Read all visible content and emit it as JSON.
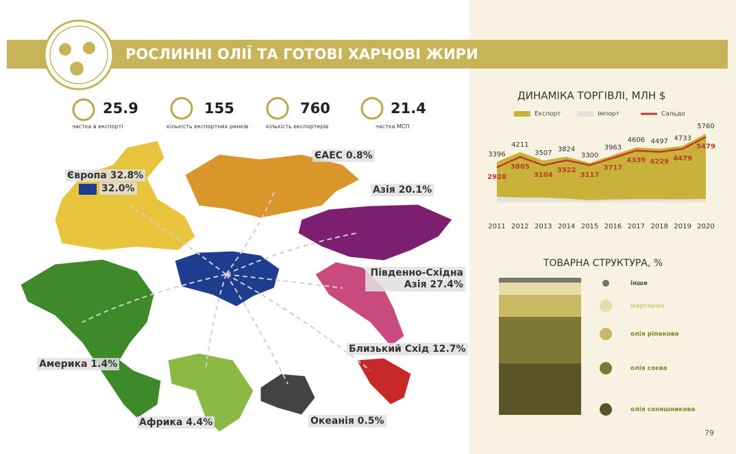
{
  "header": {
    "title": "РОСЛИННІ ОЛІЇ ТА ГОТОВІ ХАРЧОВІ ЖИРИ"
  },
  "stats": [
    {
      "value": 25.9,
      "label": "частка в експорті"
    },
    {
      "value": 155,
      "label": "кількість експортних ринків"
    },
    {
      "value": 760,
      "label": "кількість експортерів"
    },
    {
      "value": 21.4,
      "label": "частка МСП"
    }
  ],
  "map": {
    "regions": [
      "Європа 32.8%",
      "32.0%",
      "ЄАЕС 0.8%",
      "Азія 20.1%",
      "Південно-Східна Азія 27.4%",
      "Близький Схід 12.7%",
      "Америка 1.4%",
      "Африка 4.4%",
      "Океанія 0.5%"
    ]
  },
  "chart_data": [
    {
      "type": "area",
      "title": "ДИНАМІКА ТОРГІВЛІ, МЛН $",
      "x": [
        2011,
        2012,
        2013,
        2014,
        2015,
        2016,
        2017,
        2018,
        2019,
        2020
      ],
      "series": [
        {
          "name": "Експорт",
          "color": "#c9b23a",
          "values": [
            3396,
            4211,
            3507,
            3824,
            3300,
            3963,
            4606,
            4497,
            4733,
            5760
          ]
        },
        {
          "name": "Імпорт",
          "color": "#e4e2da",
          "values": [
            468,
            406,
            403,
            302,
            183,
            246,
            267,
            268,
            254,
            281
          ]
        },
        {
          "name": "Сальдо",
          "color": "#c0392b",
          "values": [
            2928,
            3805,
            3104,
            3522,
            3117,
            3717,
            4339,
            4229,
            4479,
            5479
          ]
        }
      ],
      "ylim": [
        0,
        6500
      ]
    },
    {
      "type": "stacked_bar",
      "title": "ТОВАРНА СТРУКТУРА, %",
      "categories": [
        "інше",
        "маргарин",
        "олія ріпакова",
        "олія соєва",
        "олія соняшникова"
      ],
      "values": [
        3.5,
        9,
        16,
        34,
        37.5
      ],
      "colors": [
        "#77746a",
        "#e8dca6",
        "#c9b864",
        "#7f7834",
        "#5b5428"
      ]
    }
  ],
  "page_number": 79
}
